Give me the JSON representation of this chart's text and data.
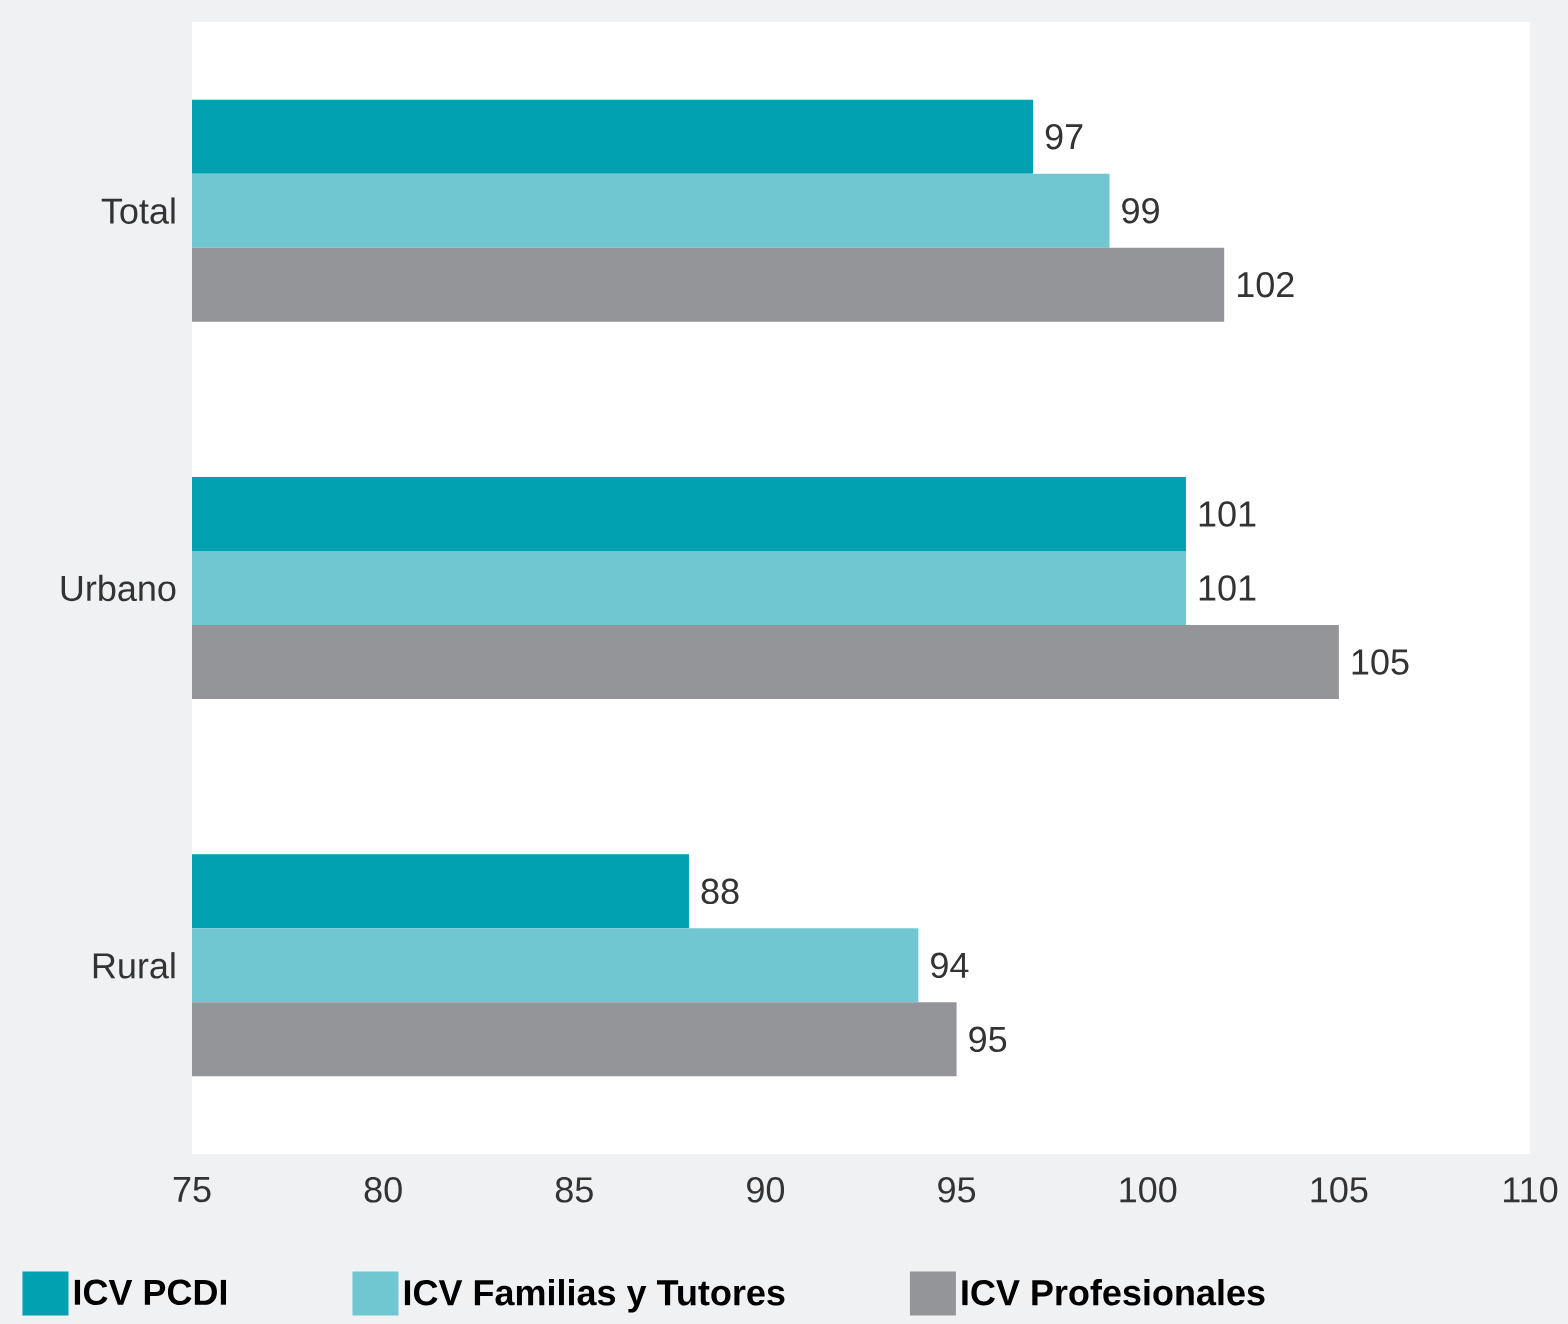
{
  "chart_data": {
    "type": "bar",
    "orientation": "horizontal",
    "categories": [
      "Total",
      "Urbano",
      "Rural"
    ],
    "series": [
      {
        "name": "ICV PCDI",
        "color": "#00a0b0",
        "values": [
          97,
          101,
          88
        ]
      },
      {
        "name": "ICV Familias y Tutores",
        "color": "#70c6d1",
        "values": [
          99,
          101,
          94
        ]
      },
      {
        "name": "ICV Profesionales",
        "color": "#939598",
        "values": [
          102,
          105,
          95
        ]
      }
    ],
    "xlim": [
      75,
      110
    ],
    "xticks": [
      75,
      80,
      85,
      90,
      95,
      100,
      105,
      110
    ],
    "data_labels": true,
    "grid": false,
    "legend": "bottom"
  }
}
